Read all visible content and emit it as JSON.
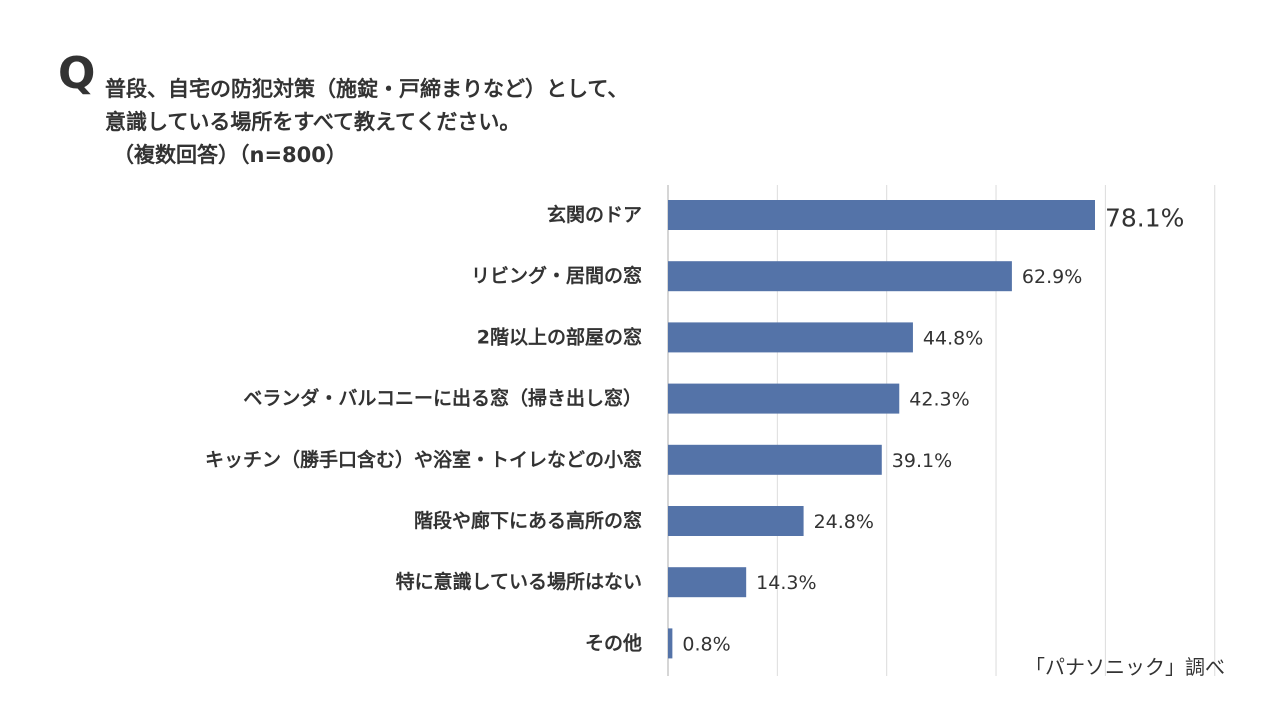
{
  "question": {
    "mark": "Q",
    "line1": "普段、自宅の防犯対策（施錠・戸締まりなど）として、",
    "line2": "意識している場所をすべて教えてください。",
    "line3": "（複数回答）（n=800）"
  },
  "source": "「パナソニック」調べ",
  "chart_data": {
    "type": "bar",
    "orientation": "horizontal",
    "categories": [
      "玄関のドア",
      "リビング・居間の窓",
      "2階以上の部屋の窓",
      "ベランダ・バルコニーに出る窓（掃き出し窓）",
      "キッチン（勝手口含む）や浴室・トイレなどの小窓",
      "階段や廊下にある高所の窓",
      "特に意識している場所はない",
      "その他"
    ],
    "values": [
      78.1,
      62.9,
      44.8,
      42.3,
      39.1,
      24.8,
      14.3,
      0.8
    ],
    "value_labels": [
      "78.1%",
      "62.9%",
      "44.8%",
      "42.3%",
      "39.1%",
      "24.8%",
      "14.3%",
      "0.8%"
    ],
    "xlim": [
      0,
      100
    ],
    "grid": true,
    "bar_color": "#5473a8",
    "grid_color": "#dcdcdc",
    "axis_color": "#c8c8c8"
  }
}
